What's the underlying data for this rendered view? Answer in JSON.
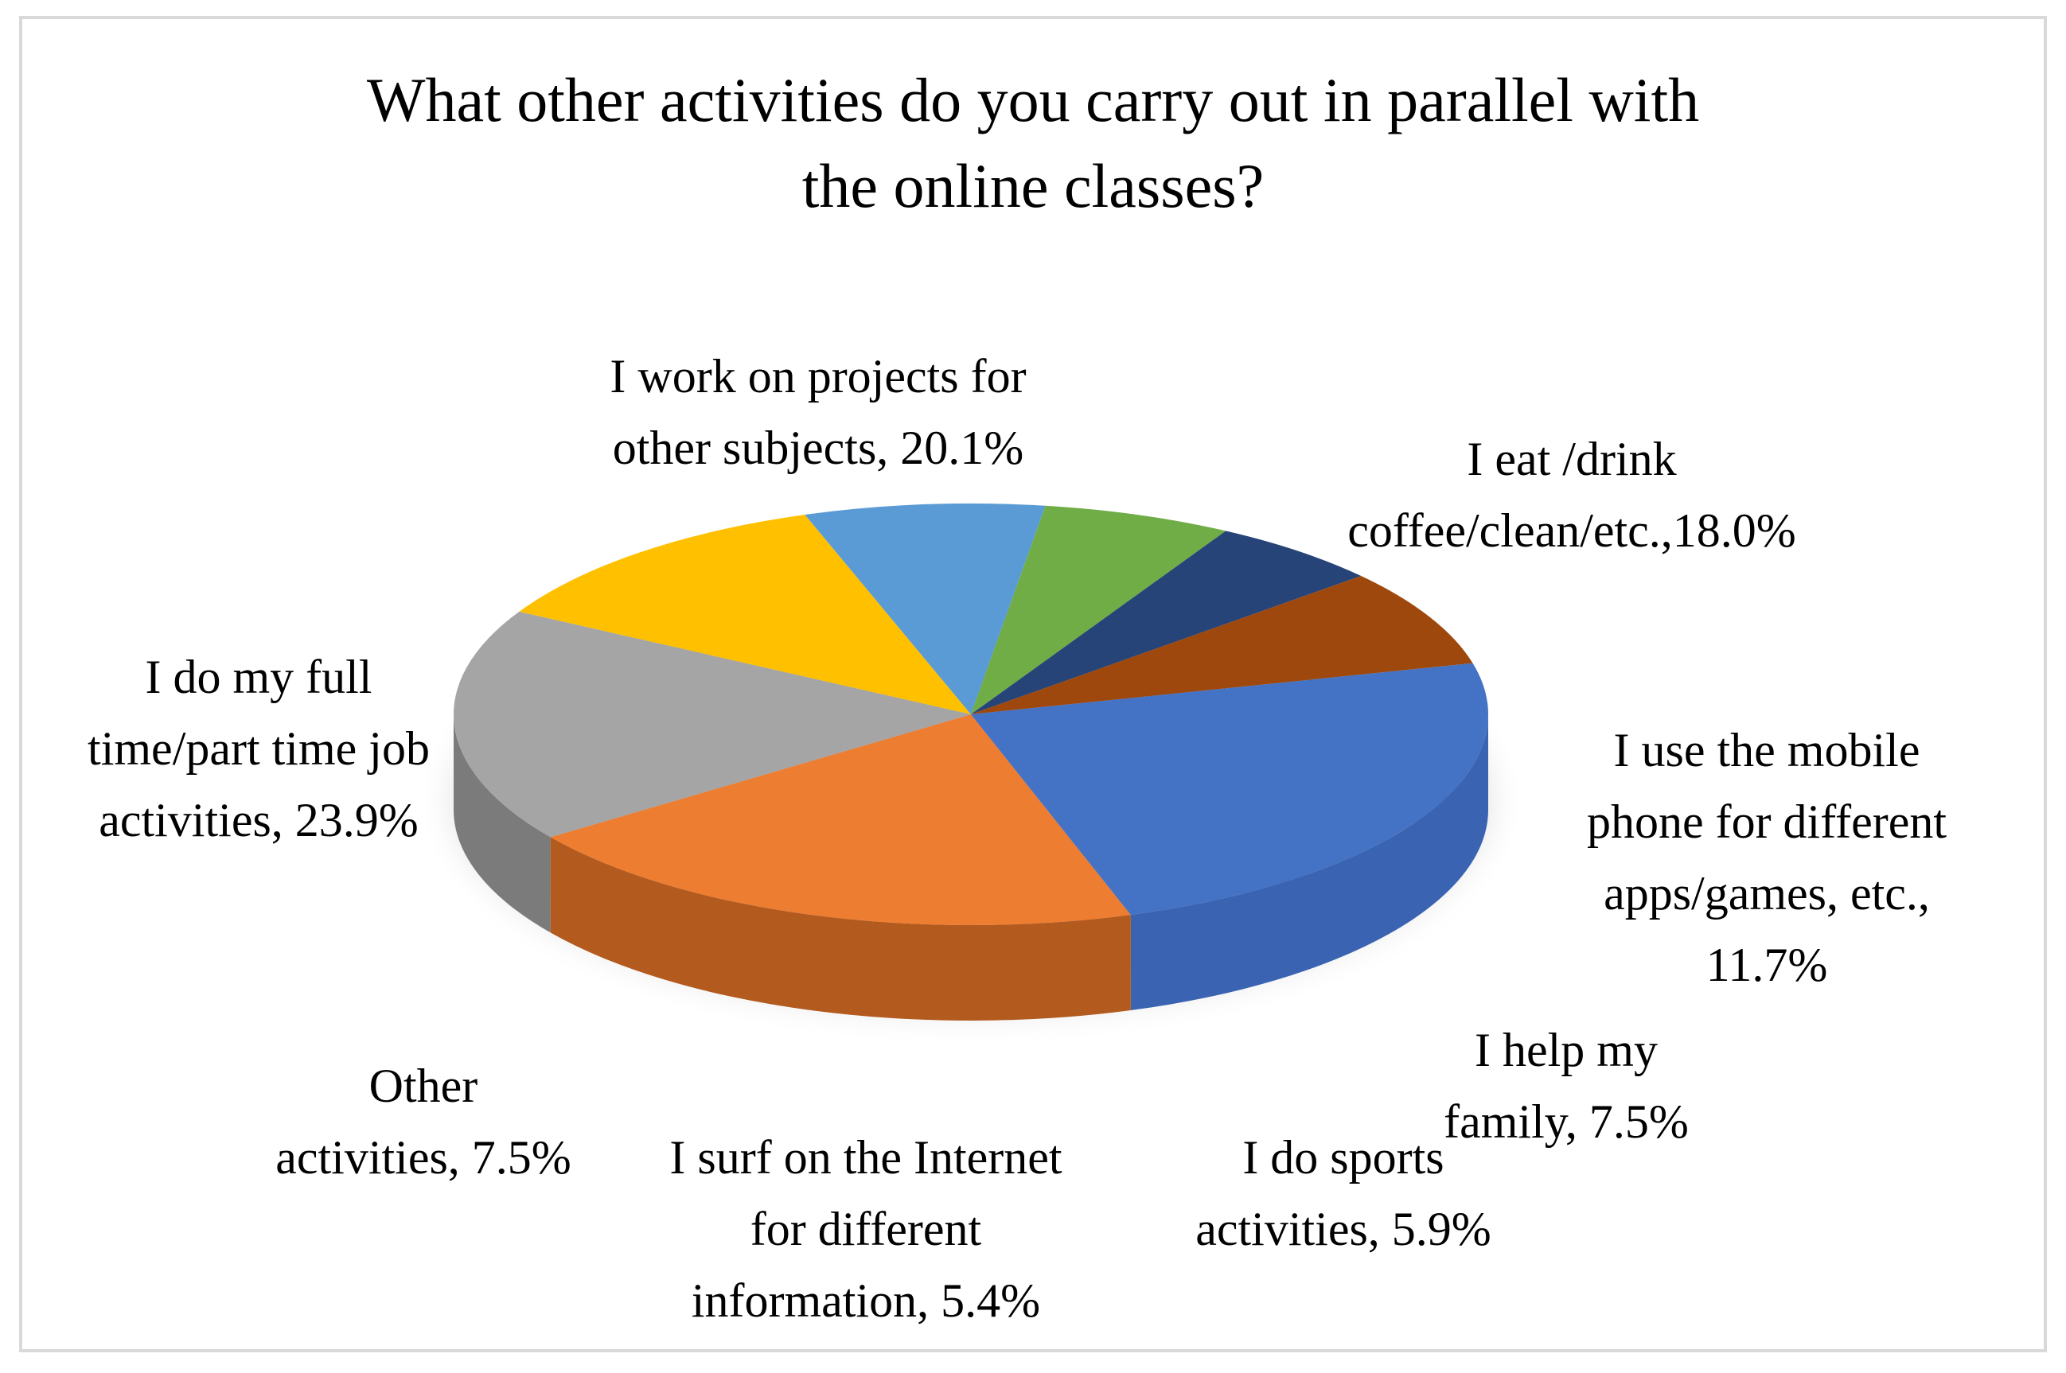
{
  "chart_data": {
    "type": "pie",
    "style": "3d",
    "title_lines": [
      "What other activities do you carry out in parallel with",
      "the online classes?"
    ],
    "slices": [
      {
        "key": "projects",
        "label": "I work on projects for other subjects",
        "value": 20.1,
        "color": "#ED7D31",
        "side_color": "#B35A1F",
        "label_lines": [
          "I work on projects for",
          "other subjects, 20.1%"
        ]
      },
      {
        "key": "eat",
        "label": "I eat /drink coffee/clean/etc.",
        "value": 18.0,
        "color": "#A5A5A5",
        "side_color": "#7B7B7B",
        "label_lines": [
          "I eat /drink",
          "coffee/clean/etc.,18.0%"
        ]
      },
      {
        "key": "mobile",
        "label": "I use the mobile phone for different apps/games, etc.",
        "value": 11.7,
        "color": "#FFC000",
        "side_color": "#A07800",
        "label_lines": [
          "I use the mobile",
          "phone for different",
          "apps/games, etc.,",
          "11.7%"
        ]
      },
      {
        "key": "family",
        "label": "I help my family",
        "value": 7.5,
        "color": "#5B9BD5",
        "side_color": "#254B6E",
        "label_lines": [
          "I help my",
          "family, 7.5%"
        ]
      },
      {
        "key": "sports",
        "label": "I do sports activities",
        "value": 5.9,
        "color": "#70AD47",
        "side_color": "#3F6B26",
        "label_lines": [
          "I do sports",
          "activities, 5.9%"
        ]
      },
      {
        "key": "internet",
        "label": "I surf on the Internet for different information",
        "value": 5.4,
        "color": "#264478",
        "side_color": "#182D52",
        "label_lines": [
          "I surf on the Internet",
          "for different",
          "information, 5.4%"
        ]
      },
      {
        "key": "other",
        "label": "Other activities",
        "value": 7.5,
        "color": "#9E480E",
        "side_color": "#7E3A0C",
        "label_lines": [
          "Other",
          "activities, 7.5%"
        ]
      },
      {
        "key": "job",
        "label": "I do my full time/part time job activities",
        "value": 23.9,
        "color": "#4472C4",
        "side_color": "#3A64B2",
        "label_lines": [
          "I do my full",
          "time/part time job",
          "activities, 23.9%"
        ]
      }
    ]
  }
}
